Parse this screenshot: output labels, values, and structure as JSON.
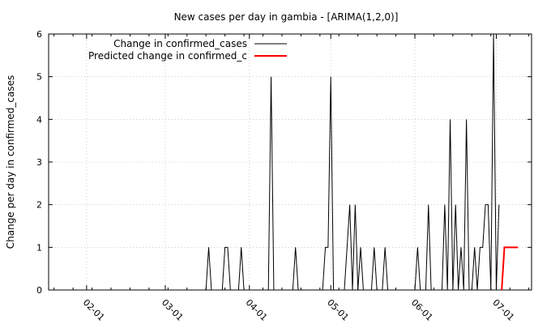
{
  "chart_data": {
    "type": "line",
    "title": "New cases per day in gambia -  [ARIMA(1,2,0)]",
    "xlabel": "",
    "ylabel": "Change per day in confirmed_cases",
    "x_axis": {
      "type": "date",
      "range": [
        "2020-01-18",
        "2020-07-14"
      ],
      "tick_dates": [
        "2020-02-01",
        "2020-03-01",
        "2020-04-01",
        "2020-05-01",
        "2020-06-01",
        "2020-07-01"
      ],
      "tick_labels": [
        "02-01",
        "03-01",
        "04-01",
        "05-01",
        "06-01",
        "07-01"
      ]
    },
    "ylim": [
      0,
      6
    ],
    "yticks": [
      0,
      1,
      2,
      3,
      4,
      5,
      6
    ],
    "grid": true,
    "legend_position": "top-left",
    "series": [
      {
        "name": "Change in confirmed_cases",
        "color": "#000000",
        "points": [
          [
            "2020-01-18",
            0
          ],
          [
            "2020-03-16",
            0
          ],
          [
            "2020-03-17",
            1
          ],
          [
            "2020-03-18",
            0
          ],
          [
            "2020-03-22",
            0
          ],
          [
            "2020-03-23",
            1
          ],
          [
            "2020-03-24",
            1
          ],
          [
            "2020-03-25",
            0
          ],
          [
            "2020-03-28",
            0
          ],
          [
            "2020-03-29",
            1
          ],
          [
            "2020-03-30",
            0
          ],
          [
            "2020-04-08",
            0
          ],
          [
            "2020-04-09",
            5
          ],
          [
            "2020-04-10",
            0
          ],
          [
            "2020-04-17",
            0
          ],
          [
            "2020-04-18",
            1
          ],
          [
            "2020-04-19",
            0
          ],
          [
            "2020-04-28",
            0
          ],
          [
            "2020-04-29",
            1
          ],
          [
            "2020-04-30",
            1
          ],
          [
            "2020-05-01",
            5
          ],
          [
            "2020-05-02",
            0
          ],
          [
            "2020-05-06",
            0
          ],
          [
            "2020-05-07",
            1
          ],
          [
            "2020-05-08",
            2
          ],
          [
            "2020-05-09",
            0
          ],
          [
            "2020-05-10",
            2
          ],
          [
            "2020-05-11",
            0
          ],
          [
            "2020-05-12",
            1
          ],
          [
            "2020-05-13",
            0
          ],
          [
            "2020-05-16",
            0
          ],
          [
            "2020-05-17",
            1
          ],
          [
            "2020-05-18",
            0
          ],
          [
            "2020-05-20",
            0
          ],
          [
            "2020-05-21",
            1
          ],
          [
            "2020-05-22",
            0
          ],
          [
            "2020-06-01",
            0
          ],
          [
            "2020-06-02",
            1
          ],
          [
            "2020-06-03",
            0
          ],
          [
            "2020-06-05",
            0
          ],
          [
            "2020-06-06",
            2
          ],
          [
            "2020-06-07",
            0
          ],
          [
            "2020-06-11",
            0
          ],
          [
            "2020-06-12",
            2
          ],
          [
            "2020-06-13",
            0
          ],
          [
            "2020-06-14",
            4
          ],
          [
            "2020-06-15",
            0
          ],
          [
            "2020-06-16",
            2
          ],
          [
            "2020-06-17",
            0
          ],
          [
            "2020-06-18",
            1
          ],
          [
            "2020-06-19",
            0
          ],
          [
            "2020-06-20",
            4
          ],
          [
            "2020-06-21",
            0
          ],
          [
            "2020-06-22",
            0
          ],
          [
            "2020-06-23",
            1
          ],
          [
            "2020-06-24",
            0
          ],
          [
            "2020-06-25",
            1
          ],
          [
            "2020-06-26",
            1
          ],
          [
            "2020-06-27",
            2
          ],
          [
            "2020-06-28",
            2
          ],
          [
            "2020-06-29",
            0
          ],
          [
            "2020-06-30",
            6
          ],
          [
            "2020-07-01",
            0
          ],
          [
            "2020-07-02",
            2
          ]
        ]
      },
      {
        "name": "Predicted change in confirmed_c",
        "color": "#ff0000",
        "points": [
          [
            "2020-07-03",
            0
          ],
          [
            "2020-07-04",
            1
          ],
          [
            "2020-07-05",
            1
          ],
          [
            "2020-07-06",
            1
          ],
          [
            "2020-07-07",
            1
          ],
          [
            "2020-07-08",
            1
          ],
          [
            "2020-07-09",
            1
          ]
        ]
      }
    ]
  }
}
